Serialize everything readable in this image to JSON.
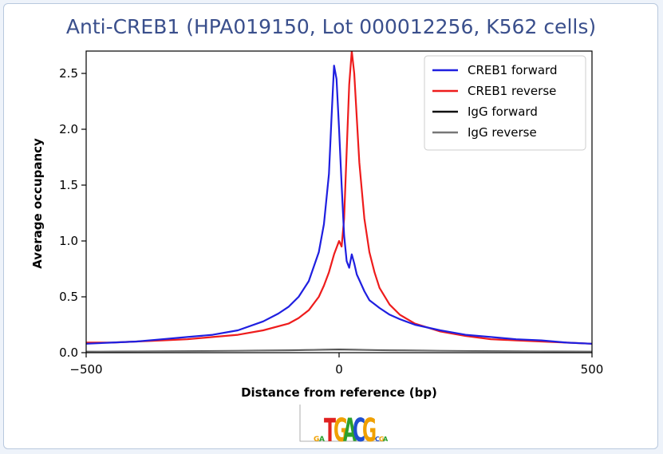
{
  "chart_data": {
    "type": "line",
    "title": "Anti-CREB1 (HPA019150, Lot 000012256, K562 cells)",
    "xlabel": "Distance from reference (bp)",
    "ylabel": "Average occupancy",
    "xlim": [
      -500,
      500
    ],
    "ylim": [
      0,
      2.7
    ],
    "xticks": [
      -500,
      0,
      500
    ],
    "yticks": [
      0.0,
      0.5,
      1.0,
      1.5,
      2.0,
      2.5
    ],
    "xtick_labels": [
      "−500",
      "0",
      "500"
    ],
    "ytick_labels": [
      "0.0",
      "0.5",
      "1.0",
      "1.5",
      "2.0",
      "2.5"
    ],
    "grid": false,
    "legend_position": "top-right",
    "motif_logo": "TGACG",
    "series": [
      {
        "name": "CREB1 forward",
        "color": "#1f1fe0",
        "x": [
          -500,
          -450,
          -400,
          -350,
          -300,
          -250,
          -200,
          -150,
          -120,
          -100,
          -80,
          -60,
          -40,
          -30,
          -20,
          -15,
          -10,
          -5,
          0,
          5,
          10,
          15,
          20,
          25,
          30,
          35,
          40,
          50,
          60,
          80,
          100,
          120,
          150,
          200,
          250,
          300,
          350,
          400,
          450,
          500
        ],
        "y": [
          0.08,
          0.09,
          0.1,
          0.12,
          0.14,
          0.16,
          0.2,
          0.28,
          0.35,
          0.41,
          0.5,
          0.64,
          0.9,
          1.15,
          1.6,
          2.1,
          2.57,
          2.45,
          2.0,
          1.5,
          1.05,
          0.82,
          0.76,
          0.88,
          0.8,
          0.7,
          0.65,
          0.55,
          0.47,
          0.4,
          0.34,
          0.3,
          0.25,
          0.2,
          0.16,
          0.14,
          0.12,
          0.11,
          0.09,
          0.08
        ]
      },
      {
        "name": "CREB1 reverse",
        "color": "#ee1c1c",
        "x": [
          -500,
          -450,
          -400,
          -350,
          -300,
          -250,
          -200,
          -150,
          -100,
          -80,
          -60,
          -40,
          -30,
          -20,
          -10,
          0,
          5,
          10,
          15,
          20,
          25,
          30,
          35,
          40,
          50,
          60,
          70,
          80,
          100,
          120,
          150,
          200,
          250,
          300,
          350,
          400,
          450,
          500
        ],
        "y": [
          0.09,
          0.09,
          0.1,
          0.11,
          0.12,
          0.14,
          0.16,
          0.2,
          0.26,
          0.31,
          0.38,
          0.5,
          0.6,
          0.72,
          0.88,
          1.0,
          0.95,
          1.2,
          1.8,
          2.4,
          2.7,
          2.5,
          2.1,
          1.7,
          1.2,
          0.9,
          0.72,
          0.58,
          0.43,
          0.34,
          0.26,
          0.19,
          0.15,
          0.12,
          0.11,
          0.1,
          0.09,
          0.08
        ]
      },
      {
        "name": "IgG forward",
        "color": "#111111",
        "x": [
          -500,
          -400,
          -300,
          -200,
          -100,
          -50,
          0,
          50,
          100,
          200,
          300,
          400,
          500
        ],
        "y": [
          0.01,
          0.012,
          0.015,
          0.018,
          0.022,
          0.026,
          0.03,
          0.026,
          0.022,
          0.018,
          0.015,
          0.012,
          0.01
        ]
      },
      {
        "name": "IgG reverse",
        "color": "#777777",
        "x": [
          -500,
          -400,
          -300,
          -200,
          -100,
          -50,
          0,
          50,
          100,
          200,
          300,
          400,
          500
        ],
        "y": [
          0.008,
          0.01,
          0.012,
          0.015,
          0.018,
          0.022,
          0.025,
          0.022,
          0.018,
          0.015,
          0.012,
          0.01,
          0.008
        ]
      }
    ]
  }
}
